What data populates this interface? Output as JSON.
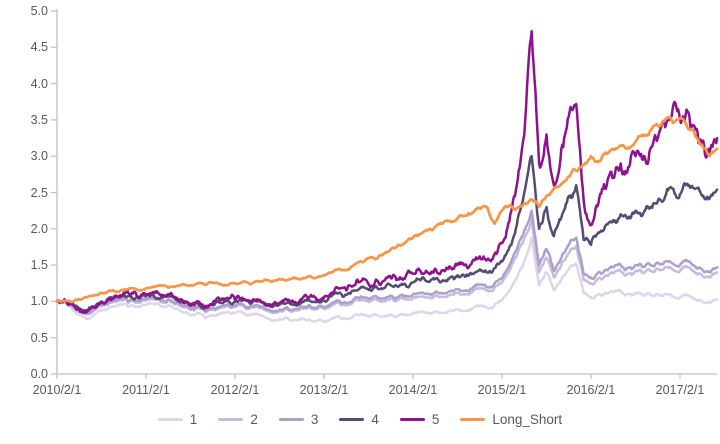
{
  "chart_data": {
    "type": "line",
    "title": "",
    "grid": false,
    "background": "#ffffff",
    "axis_color": "#bfbfbf",
    "label_color": "#595959",
    "y_axis": {
      "min": 0.0,
      "max": 5.0,
      "step": 0.5,
      "tick_labels": [
        "0.0",
        "0.5",
        "1.0",
        "1.5",
        "2.0",
        "2.5",
        "3.0",
        "3.5",
        "4.0",
        "4.5",
        "5.0"
      ]
    },
    "x_axis": {
      "tick_labels": [
        "2010/2/1",
        "2011/2/1",
        "2012/2/1",
        "2013/2/1",
        "2014/2/1",
        "2015/2/1",
        "2016/2/1",
        "2017/2/1"
      ],
      "months_per_tick": 12,
      "data_span_months": 89
    },
    "legend": {
      "position": "bottom",
      "entries": [
        {
          "label": "1",
          "color": "#ddd6ea"
        },
        {
          "label": "2",
          "color": "#c7bcdc"
        },
        {
          "label": "3",
          "color": "#aea0cd"
        },
        {
          "label": "4",
          "color": "#564b72"
        },
        {
          "label": "5",
          "color": "#8e128e"
        },
        {
          "label": "Long_Short",
          "color": "#f79646"
        }
      ]
    },
    "series": [
      {
        "name": "1",
        "color": "#ddd6ea",
        "monthly_values": [
          1.0,
          0.98,
          0.9,
          0.82,
          0.76,
          0.82,
          0.87,
          0.91,
          0.94,
          0.97,
          0.95,
          0.92,
          0.95,
          0.97,
          0.93,
          0.95,
          0.9,
          0.85,
          0.81,
          0.84,
          0.77,
          0.81,
          0.83,
          0.86,
          0.84,
          0.85,
          0.81,
          0.83,
          0.78,
          0.74,
          0.76,
          0.78,
          0.74,
          0.77,
          0.75,
          0.73,
          0.72,
          0.76,
          0.79,
          0.76,
          0.8,
          0.83,
          0.79,
          0.82,
          0.79,
          0.82,
          0.8,
          0.82,
          0.84,
          0.86,
          0.84,
          0.86,
          0.84,
          0.87,
          0.89,
          0.87,
          0.9,
          0.94,
          0.91,
          0.95,
          1.02,
          1.15,
          1.32,
          1.55,
          1.88,
          1.22,
          1.4,
          1.15,
          1.3,
          1.44,
          1.52,
          1.12,
          1.06,
          1.1,
          1.12,
          1.13,
          1.14,
          1.1,
          1.12,
          1.08,
          1.09,
          1.1,
          1.1,
          1.07,
          1.05,
          1.08,
          1.03,
          1.0,
          0.98,
          1.03
        ]
      },
      {
        "name": "2",
        "color": "#c7bcdc",
        "monthly_values": [
          1.0,
          1.0,
          0.94,
          0.86,
          0.82,
          0.88,
          0.93,
          0.97,
          1.0,
          1.03,
          1.01,
          0.98,
          1.01,
          1.03,
          0.99,
          1.01,
          0.96,
          0.92,
          0.88,
          0.91,
          0.85,
          0.89,
          0.91,
          0.94,
          0.92,
          0.94,
          0.9,
          0.93,
          0.88,
          0.85,
          0.87,
          0.9,
          0.87,
          0.91,
          0.93,
          0.89,
          0.9,
          0.94,
          0.98,
          0.95,
          1.0,
          1.03,
          0.99,
          1.03,
          1.0,
          1.04,
          1.02,
          1.04,
          1.05,
          1.07,
          1.05,
          1.08,
          1.06,
          1.09,
          1.12,
          1.1,
          1.13,
          1.18,
          1.15,
          1.19,
          1.26,
          1.43,
          1.63,
          1.88,
          2.12,
          1.4,
          1.6,
          1.33,
          1.5,
          1.66,
          1.76,
          1.3,
          1.25,
          1.32,
          1.36,
          1.39,
          1.42,
          1.38,
          1.42,
          1.39,
          1.42,
          1.45,
          1.47,
          1.44,
          1.42,
          1.47,
          1.4,
          1.36,
          1.33,
          1.4
        ]
      },
      {
        "name": "3",
        "color": "#aea0cd",
        "monthly_values": [
          1.0,
          1.01,
          0.95,
          0.88,
          0.84,
          0.9,
          0.95,
          0.99,
          1.02,
          1.05,
          1.03,
          1.0,
          1.03,
          1.05,
          1.01,
          1.03,
          0.98,
          0.94,
          0.9,
          0.93,
          0.87,
          0.91,
          0.93,
          0.96,
          0.94,
          0.96,
          0.92,
          0.95,
          0.9,
          0.87,
          0.89,
          0.92,
          0.89,
          0.93,
          0.95,
          0.91,
          0.92,
          0.97,
          1.01,
          0.98,
          1.03,
          1.07,
          1.03,
          1.07,
          1.04,
          1.08,
          1.06,
          1.08,
          1.1,
          1.12,
          1.1,
          1.13,
          1.11,
          1.14,
          1.17,
          1.15,
          1.18,
          1.23,
          1.2,
          1.25,
          1.32,
          1.5,
          1.72,
          1.98,
          2.25,
          1.5,
          1.72,
          1.42,
          1.6,
          1.78,
          1.88,
          1.38,
          1.33,
          1.4,
          1.44,
          1.47,
          1.5,
          1.46,
          1.5,
          1.47,
          1.5,
          1.53,
          1.55,
          1.52,
          1.5,
          1.55,
          1.48,
          1.44,
          1.4,
          1.47
        ]
      },
      {
        "name": "4",
        "color": "#564b72",
        "monthly_values": [
          1.0,
          1.02,
          0.96,
          0.9,
          0.87,
          0.93,
          0.99,
          1.03,
          1.06,
          1.09,
          1.07,
          1.04,
          1.07,
          1.09,
          1.05,
          1.07,
          1.02,
          0.98,
          0.94,
          0.97,
          0.91,
          0.95,
          0.98,
          1.01,
          0.99,
          1.01,
          0.97,
          1.0,
          0.95,
          0.92,
          0.95,
          0.98,
          0.96,
          1.0,
          1.02,
          0.99,
          1.01,
          1.07,
          1.12,
          1.09,
          1.15,
          1.2,
          1.16,
          1.21,
          1.18,
          1.22,
          1.2,
          1.23,
          1.26,
          1.29,
          1.27,
          1.31,
          1.29,
          1.33,
          1.36,
          1.34,
          1.38,
          1.44,
          1.4,
          1.46,
          1.55,
          1.75,
          2.05,
          2.5,
          3.0,
          2.0,
          2.3,
          1.9,
          2.15,
          2.45,
          2.6,
          1.85,
          1.78,
          1.95,
          2.05,
          2.12,
          2.2,
          2.15,
          2.25,
          2.2,
          2.3,
          2.38,
          2.45,
          2.55,
          2.48,
          2.62,
          2.55,
          2.45,
          2.42,
          2.54
        ]
      },
      {
        "name": "5",
        "color": "#8e128e",
        "monthly_values": [
          1.0,
          1.03,
          0.97,
          0.88,
          0.85,
          0.92,
          1.0,
          1.05,
          1.08,
          1.12,
          1.1,
          1.06,
          1.1,
          1.12,
          1.08,
          1.1,
          1.05,
          1.0,
          0.96,
          1.0,
          0.94,
          0.98,
          1.02,
          1.05,
          1.02,
          1.05,
          1.0,
          1.03,
          0.98,
          0.95,
          0.98,
          1.02,
          0.99,
          1.03,
          1.06,
          1.02,
          1.05,
          1.12,
          1.18,
          1.15,
          1.22,
          1.28,
          1.24,
          1.3,
          1.28,
          1.32,
          1.3,
          1.34,
          1.38,
          1.42,
          1.4,
          1.45,
          1.43,
          1.48,
          1.52,
          1.5,
          1.55,
          1.62,
          1.58,
          1.65,
          1.8,
          2.1,
          2.6,
          3.3,
          4.72,
          2.9,
          3.3,
          2.6,
          3.1,
          3.55,
          3.72,
          2.4,
          2.05,
          2.35,
          2.55,
          2.7,
          2.9,
          2.85,
          3.0,
          2.95,
          3.1,
          3.25,
          3.4,
          3.65,
          3.5,
          3.62,
          3.4,
          3.2,
          3.05,
          3.25
        ]
      },
      {
        "name": "Long_Short",
        "color": "#f79646",
        "monthly_values": [
          1.0,
          1.01,
          0.99,
          1.03,
          1.06,
          1.08,
          1.12,
          1.15,
          1.13,
          1.16,
          1.18,
          1.15,
          1.18,
          1.2,
          1.22,
          1.19,
          1.21,
          1.24,
          1.22,
          1.25,
          1.23,
          1.26,
          1.24,
          1.22,
          1.25,
          1.27,
          1.24,
          1.28,
          1.3,
          1.27,
          1.31,
          1.29,
          1.33,
          1.31,
          1.35,
          1.33,
          1.36,
          1.4,
          1.45,
          1.43,
          1.5,
          1.55,
          1.6,
          1.58,
          1.65,
          1.72,
          1.78,
          1.82,
          1.88,
          1.93,
          1.98,
          2.03,
          2.07,
          2.1,
          2.14,
          2.18,
          2.22,
          2.28,
          2.3,
          2.07,
          2.25,
          2.32,
          2.28,
          2.35,
          2.4,
          2.3,
          2.45,
          2.55,
          2.62,
          2.72,
          2.8,
          2.88,
          3.0,
          2.92,
          3.05,
          3.1,
          3.15,
          3.12,
          3.2,
          3.28,
          3.35,
          3.42,
          3.5,
          3.46,
          3.52,
          3.4,
          3.3,
          3.15,
          3.0,
          3.1
        ]
      }
    ]
  }
}
